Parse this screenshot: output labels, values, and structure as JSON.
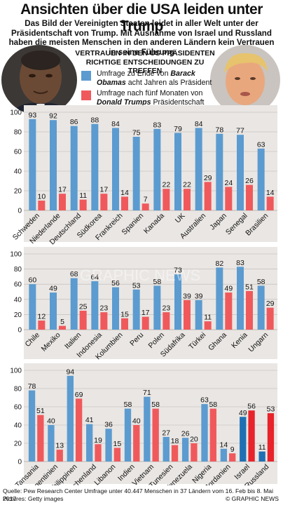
{
  "title": "Ansichten über die USA leiden unter Trump",
  "subtitle": "Das Bild der Vereinigten Staaten leidet in aller Welt unter der Präsidentschaft von Trump. Mit Ausnahme von Israel und Russland haben die meisten Menschen in den anderen Ländern kein Vertrauen in seine Führung",
  "legend": {
    "heading": "Vertrauen in den US Präsidenten richtige Entscheidungen zu treffen",
    "obama_pre": "Umfrage zu Ende von ",
    "obama_name": "Barack Obamas",
    "obama_post": " acht Jahren als Präsident",
    "trump_pre": "Umfrage nach fünf Monaten von ",
    "trump_name": "Donald Trumps",
    "trump_post": " Präsidentschaft"
  },
  "colors": {
    "obama": "#5b9bd0",
    "trump": "#f0595c",
    "obama_highlight": "#1f6fb3",
    "trump_highlight": "#e8232b",
    "panel_bg": "#e9e6e3"
  },
  "watermark": "GRAPHIC NEWS",
  "source": "Quelle: Pew Research Center Umfrage unter 40.447 Menschen in 37 Ländern vom 16. Feb bis 8. Mai 2017",
  "pictures": "Pictures: Getty images",
  "copyright": "© GRAPHIC NEWS",
  "chart_data": [
    {
      "type": "bar",
      "categories": [
        "Schweden",
        "Niederlande",
        "Deutschland",
        "Südkorea",
        "Frankreich",
        "Spanien",
        "Kanada",
        "UK",
        "Australien",
        "Japan",
        "Senegal",
        "Brasilien"
      ],
      "series": [
        {
          "name": "Barack Obama",
          "values": [
            93,
            92,
            86,
            88,
            84,
            75,
            83,
            79,
            84,
            78,
            77,
            63
          ]
        },
        {
          "name": "Donald Trump",
          "values": [
            10,
            17,
            11,
            17,
            14,
            7,
            22,
            22,
            29,
            24,
            26,
            14
          ]
        }
      ],
      "ylim": [
        0,
        100
      ],
      "yticks": [
        0,
        20,
        40,
        60,
        80,
        100
      ]
    },
    {
      "type": "bar",
      "categories": [
        "Chile",
        "Mexiko",
        "Italien",
        "Indonesia",
        "Kolumbien",
        "Peru",
        "Polen",
        "Südafrika",
        "Türkei",
        "Ghana",
        "Kenia",
        "Ungarn"
      ],
      "series": [
        {
          "name": "Barack Obama",
          "values": [
            60,
            49,
            68,
            64,
            56,
            53,
            58,
            73,
            39,
            82,
            83,
            58
          ]
        },
        {
          "name": "Donald Trump",
          "values": [
            12,
            5,
            25,
            23,
            15,
            17,
            23,
            39,
            11,
            49,
            51,
            29
          ]
        }
      ],
      "ylim": [
        0,
        100
      ],
      "yticks": [
        0,
        20,
        40,
        60,
        80,
        100
      ]
    },
    {
      "type": "bar",
      "categories": [
        "Tansania",
        "Argentinien",
        "Philippinen",
        "Griechenland",
        "Libanon",
        "Indien",
        "Vietnam",
        "Tunesien",
        "Venezuela",
        "Nigeria",
        "Jordanien",
        "Israel",
        "Russland"
      ],
      "series": [
        {
          "name": "Barack Obama",
          "values": [
            78,
            40,
            94,
            41,
            36,
            58,
            71,
            27,
            26,
            63,
            14,
            49,
            11
          ]
        },
        {
          "name": "Donald Trump",
          "values": [
            51,
            13,
            69,
            19,
            15,
            40,
            58,
            18,
            20,
            58,
            9,
            56,
            53
          ]
        }
      ],
      "highlight": [
        "Israel",
        "Russland"
      ],
      "ylim": [
        0,
        100
      ],
      "yticks": [
        0,
        20,
        40,
        60,
        80,
        100
      ]
    }
  ]
}
